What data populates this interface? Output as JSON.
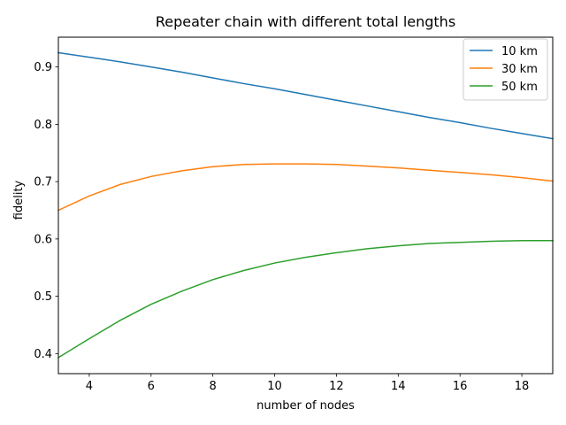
{
  "chart_data": {
    "type": "line",
    "title": "Repeater chain with different total lengths",
    "xlabel": "number of nodes",
    "ylabel": "fidelity",
    "xlim": [
      3,
      19
    ],
    "ylim": [
      0.365,
      0.952
    ],
    "xticks": [
      4,
      6,
      8,
      10,
      12,
      14,
      16,
      18
    ],
    "yticks": [
      0.4,
      0.5,
      0.6,
      0.7,
      0.8,
      0.9
    ],
    "grid": false,
    "legend_position": "top-right",
    "x": [
      3,
      4,
      5,
      6,
      7,
      8,
      9,
      10,
      11,
      12,
      13,
      14,
      15,
      16,
      17,
      18,
      19
    ],
    "series": [
      {
        "name": "10 km",
        "color": "#1f77b4",
        "values": [
          0.925,
          0.917,
          0.909,
          0.9,
          0.891,
          0.881,
          0.871,
          0.862,
          0.852,
          0.842,
          0.832,
          0.822,
          0.812,
          0.803,
          0.793,
          0.784,
          0.775
        ]
      },
      {
        "name": "30 km",
        "color": "#ff7f0e",
        "values": [
          0.65,
          0.675,
          0.695,
          0.709,
          0.719,
          0.726,
          0.73,
          0.731,
          0.731,
          0.73,
          0.727,
          0.724,
          0.72,
          0.716,
          0.712,
          0.707,
          0.701
        ]
      },
      {
        "name": "50 km",
        "color": "#2ca02c",
        "values": [
          0.393,
          0.426,
          0.458,
          0.486,
          0.509,
          0.529,
          0.545,
          0.558,
          0.568,
          0.576,
          0.583,
          0.588,
          0.592,
          0.594,
          0.596,
          0.597,
          0.597
        ]
      }
    ]
  }
}
